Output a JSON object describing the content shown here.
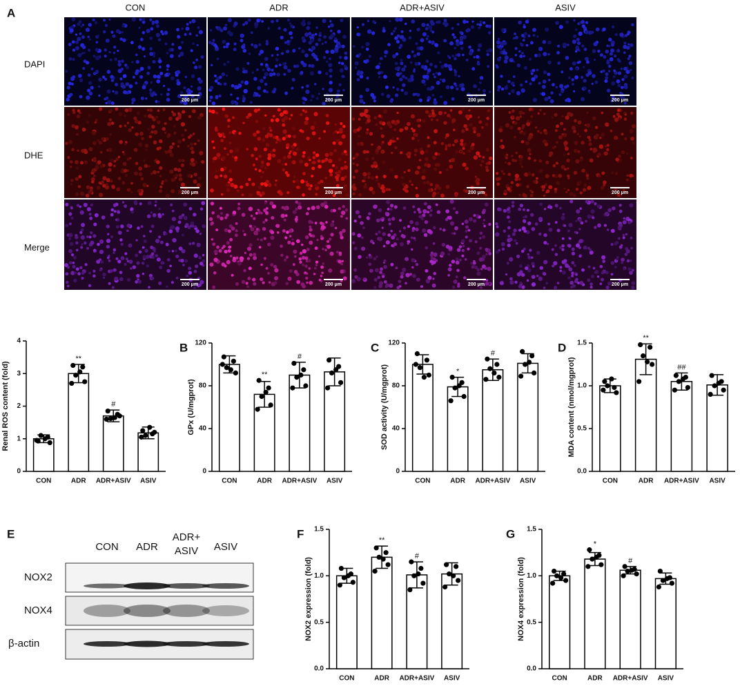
{
  "micrograph": {
    "panel": "A",
    "columns": [
      "CON",
      "ADR",
      "ADR+ASIV",
      "ASIV"
    ],
    "rows": [
      "DAPI",
      "DHE",
      "Merge"
    ],
    "scale_bar": "200 μm"
  },
  "blot": {
    "panel": "E",
    "lanes": [
      [
        "CON"
      ],
      [
        "ADR"
      ],
      [
        "ADR+",
        "ASIV"
      ],
      [
        "ASIV"
      ]
    ],
    "bands": [
      "NOX2",
      "NOX4",
      "β-actin"
    ]
  },
  "chart_data": [
    {
      "type": "bar",
      "y_label": "Renal ROS content (fold)",
      "categories": [
        "CON",
        "ADR",
        "ADR+ASIV",
        "ASIV"
      ],
      "values": [
        1.0,
        3.0,
        1.7,
        1.18
      ],
      "errors": [
        0.12,
        0.28,
        0.18,
        0.18
      ],
      "points": [
        [
          0.93,
          1.05,
          1.1,
          0.88,
          0.95,
          1.0
        ],
        [
          3.25,
          3.2,
          2.95,
          2.75,
          2.7,
          3.05
        ],
        [
          1.85,
          1.75,
          1.62,
          1.7,
          1.6,
          1.65
        ],
        [
          1.25,
          1.15,
          1.1,
          1.2,
          1.05,
          1.35
        ]
      ],
      "annotations": [
        null,
        "**",
        "#",
        null
      ],
      "ylim": [
        0,
        4
      ],
      "yticks": [
        0,
        1,
        2,
        3,
        4
      ]
    },
    {
      "type": "bar",
      "panel": "B",
      "y_label": "GPx (U/mgprot)",
      "categories": [
        "CON",
        "ADR",
        "ADR+ASIV",
        "ASIV"
      ],
      "values": [
        100,
        72,
        90,
        93
      ],
      "errors": [
        8,
        12,
        12,
        13
      ],
      "points": [
        [
          107,
          103,
          97,
          92,
          100,
          95
        ],
        [
          85,
          78,
          70,
          62,
          58,
          74
        ],
        [
          101,
          95,
          88,
          80,
          78,
          90
        ],
        [
          104,
          98,
          92,
          83,
          78,
          95
        ]
      ],
      "annotations": [
        null,
        "**",
        "#",
        null
      ],
      "ylim": [
        0,
        120
      ],
      "yticks": [
        0,
        40,
        80,
        120
      ]
    },
    {
      "type": "bar",
      "panel": "C",
      "y_label": "SOD activity (U/mgprot)",
      "categories": [
        "CON",
        "ADR",
        "ADR+ASIV",
        "ASIV"
      ],
      "values": [
        100,
        79,
        95,
        101
      ],
      "errors": [
        9,
        9,
        10,
        9
      ],
      "points": [
        [
          110,
          104,
          97,
          90,
          100,
          88
        ],
        [
          88,
          83,
          78,
          70,
          66,
          80
        ],
        [
          105,
          100,
          96,
          88,
          86,
          92
        ],
        [
          112,
          108,
          100,
          92,
          89,
          102
        ]
      ],
      "annotations": [
        null,
        "*",
        "#",
        null
      ],
      "ylim": [
        0,
        120
      ],
      "yticks": [
        0,
        40,
        80,
        120
      ]
    },
    {
      "type": "bar",
      "panel": "D",
      "y_label": "MDA content (nmol/mgprot)",
      "categories": [
        "CON",
        "ADR",
        "ADR+ASIV",
        "ASIV"
      ],
      "values": [
        1.0,
        1.31,
        1.05,
        1.01
      ],
      "errors": [
        0.08,
        0.18,
        0.1,
        0.12
      ],
      "points": [
        [
          1.05,
          0.98,
          1.0,
          0.92,
          0.95,
          1.08
        ],
        [
          1.48,
          1.45,
          1.35,
          1.25,
          1.05,
          1.28
        ],
        [
          1.12,
          1.1,
          1.05,
          0.98,
          0.95,
          1.08
        ],
        [
          1.12,
          1.05,
          1.0,
          0.95,
          0.9,
          1.03
        ]
      ],
      "annotations": [
        null,
        "**",
        "##",
        null
      ],
      "ylim": [
        0,
        1.5
      ],
      "yticks": [
        {
          "value": 0,
          "label": "0.0"
        },
        {
          "value": 0.5,
          "label": "0.5"
        },
        {
          "value": 1,
          "label": "1.0"
        },
        {
          "value": 1.5,
          "label": "1.5"
        }
      ]
    },
    {
      "type": "bar",
      "panel": "F",
      "y_label": "NOX2 expression (fold)",
      "categories": [
        "CON",
        "ADR",
        "ADR+ASIV",
        "ASIV"
      ],
      "values": [
        1.0,
        1.2,
        1.01,
        1.02
      ],
      "errors": [
        0.08,
        0.12,
        0.14,
        0.12
      ],
      "points": [
        [
          1.08,
          1.02,
          0.98,
          0.93,
          0.9,
          1.0
        ],
        [
          1.3,
          1.25,
          1.2,
          1.12,
          1.05,
          1.18
        ],
        [
          1.15,
          1.08,
          1.0,
          0.92,
          0.85,
          1.02
        ],
        [
          1.12,
          1.1,
          1.02,
          0.95,
          0.88,
          1.0
        ]
      ],
      "annotations": [
        null,
        "**",
        "#",
        null
      ],
      "ylim": [
        0,
        1.5
      ],
      "yticks": [
        {
          "value": 0,
          "label": "0.0"
        },
        {
          "value": 0.5,
          "label": "0.5"
        },
        {
          "value": 1,
          "label": "1.0"
        },
        {
          "value": 1.5,
          "label": "1.5"
        }
      ]
    },
    {
      "type": "bar",
      "panel": "G",
      "y_label": "NOX4 expression (fold)",
      "categories": [
        "CON",
        "ADR",
        "ADR+ASIV",
        "ASIV"
      ],
      "values": [
        1.0,
        1.18,
        1.06,
        0.97
      ],
      "errors": [
        0.05,
        0.07,
        0.04,
        0.06
      ],
      "points": [
        [
          1.05,
          1.02,
          1.0,
          0.95,
          0.92,
          0.98
        ],
        [
          1.28,
          1.22,
          1.18,
          1.12,
          1.1,
          1.2
        ],
        [
          1.1,
          1.07,
          1.05,
          1.02,
          1.0,
          1.06
        ],
        [
          1.05,
          0.98,
          0.95,
          0.92,
          0.88,
          0.97
        ]
      ],
      "annotations": [
        null,
        "*",
        "#",
        null
      ],
      "ylim": [
        0,
        1.5
      ],
      "yticks": [
        {
          "value": 0,
          "label": "0.0"
        },
        {
          "value": 0.5,
          "label": "0.5"
        },
        {
          "value": 1,
          "label": "1.0"
        },
        {
          "value": 1.5,
          "label": "1.5"
        }
      ]
    }
  ]
}
